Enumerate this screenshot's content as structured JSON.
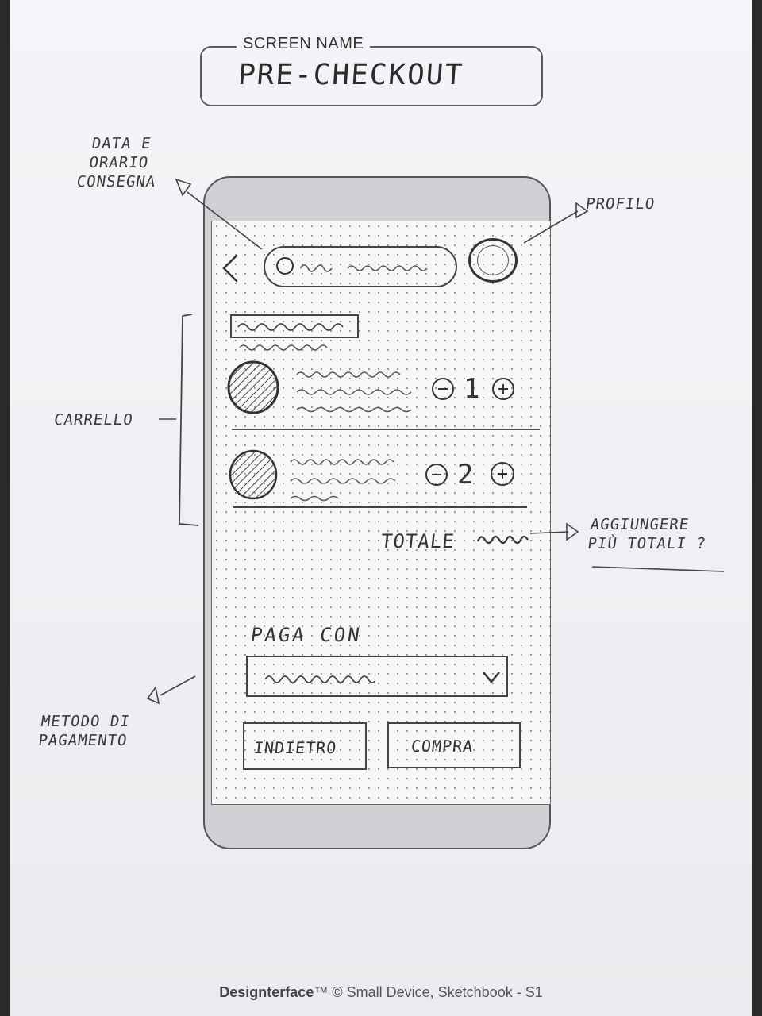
{
  "sheet": {
    "screen_name_label": "SCREEN NAME",
    "screen_name": "PRE-CHECKOUT",
    "footer_brand": "Designterface",
    "footer_tm": "™",
    "footer_text": " © Small Device, Sketchbook - S1"
  },
  "annotations": {
    "date_time": "DATA E\nORARIO\nCONSEGNA",
    "profile": "PROFILO",
    "cart": "CARRELLO",
    "add_totals": "AGGIUNGERE\nPIÙ TOTALI ?",
    "payment_method": "METODO DI\nPAGAMENTO"
  },
  "app": {
    "header": {
      "back_icon": "chevron-left-icon",
      "date_icon": "circle-icon",
      "profile_icon": "avatar-icon"
    },
    "cart_items": [
      {
        "qty": "1",
        "minus_icon": "minus-circle-icon",
        "plus_icon": "plus-circle-icon"
      },
      {
        "qty": "2",
        "minus_icon": "minus-circle-icon",
        "plus_icon": "plus-circle-icon"
      }
    ],
    "total_label": "TOTALE",
    "pay_with_label": "PAGA CON",
    "dropdown_icon": "chevron-down-icon",
    "back_button": "INDIETRO",
    "buy_button": "COMPRA"
  }
}
